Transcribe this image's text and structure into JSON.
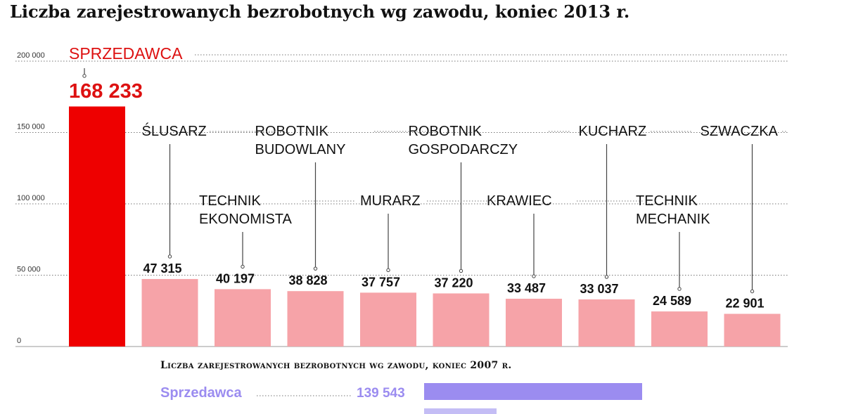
{
  "title": "Liczba zarejestrowanych bezrobotnych wg zawodu, koniec 2013 r.",
  "colors": {
    "highlight_bar": "#ee0000",
    "bar": "#f6a3a8",
    "highlight_text": "#dd1111",
    "text": "#111111",
    "grid": "#777777",
    "series_2007": "#9b8cf0",
    "series_2007_light": "#c4bdf5"
  },
  "chart_data": [
    {
      "type": "bar",
      "title": "Liczba zarejestrowanych bezrobotnych wg zawodu, koniec 2013 r.",
      "xlabel": "",
      "ylabel": "",
      "ylim": [
        0,
        200000
      ],
      "yticks": [
        0,
        50000,
        100000,
        150000,
        200000
      ],
      "ytick_labels": [
        "0",
        "50 000",
        "100 000",
        "150 000",
        "200 000"
      ],
      "grid": true,
      "categories": [
        [
          "SPRZEDAWCA"
        ],
        [
          "ŚLUSARZ"
        ],
        [
          "TECHNIK",
          "EKONOMISTA"
        ],
        [
          "ROBOTNIK",
          "BUDOWLANY"
        ],
        [
          "MURARZ"
        ],
        [
          "ROBOTNIK",
          "GOSPODARCZY"
        ],
        [
          "KRAWIEC"
        ],
        [
          "KUCHARZ"
        ],
        [
          "TECHNIK",
          "MECHANIK"
        ],
        [
          "SZWACZKA"
        ]
      ],
      "values": [
        168233,
        47315,
        40197,
        38828,
        37757,
        37220,
        33487,
        33037,
        24589,
        22901
      ],
      "value_labels": [
        "168 233",
        "47 315",
        "40 197",
        "38 828",
        "37 757",
        "37 220",
        "33 487",
        "33 037",
        "24 589",
        "22 901"
      ],
      "highlight_index": 0
    },
    {
      "type": "bar",
      "orientation": "horizontal",
      "title": "Liczba zarejestrowanych bezrobotnych wg zawodu, koniec 2007 r.",
      "categories": [
        "Sprzedawca"
      ],
      "values": [
        139543
      ],
      "value_labels": [
        "139 543"
      ]
    }
  ]
}
